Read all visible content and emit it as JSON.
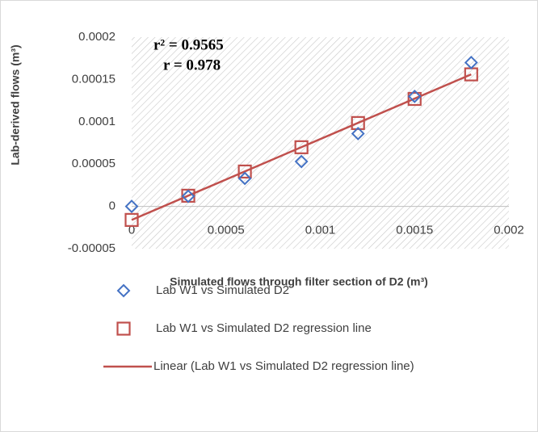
{
  "chart_data": {
    "type": "scatter",
    "annotations": [
      "r² = 0.9565",
      "r = 0.978"
    ],
    "xlabel": "Simulated flows through filter section of D2 (m³)",
    "ylabel": "Lab-derived flows (m³)",
    "xlim": [
      0,
      0.002
    ],
    "xticks": [
      0,
      0.0005,
      0.001,
      0.0015,
      0.002
    ],
    "ylim": [
      -5e-05,
      0.0002
    ],
    "yticks": [
      -5e-05,
      0,
      5e-05,
      0.0001,
      0.00015,
      0.0002
    ],
    "series": [
      {
        "name": "Lab W1 vs Simulated D2",
        "color": "#4472c4",
        "marker": "diamond",
        "x": [
          0,
          0.0003,
          0.0006,
          0.0009,
          0.0012,
          0.0015,
          0.0018
        ],
        "values": [
          0,
          1.2e-05,
          3.3e-05,
          5.3e-05,
          8.6e-05,
          0.00013,
          0.00017
        ]
      },
      {
        "name": "Lab W1 vs Simulated D2 regression line",
        "color": "#c0504d",
        "marker": "square",
        "x": [
          0,
          0.0003,
          0.0006,
          0.0009,
          0.0012,
          0.0015,
          0.0018
        ],
        "values": [
          -1.6e-05,
          1.26e-05,
          4.12e-05,
          6.99e-05,
          9.85e-05,
          0.000127,
          0.000156
        ]
      },
      {
        "name": "Linear (Lab W1 vs Simulated D2 regression line)",
        "color": "#c0504d",
        "marker": "line",
        "x": [
          0,
          0.0018
        ],
        "values": [
          -1.6e-05,
          0.000156
        ]
      }
    ]
  }
}
